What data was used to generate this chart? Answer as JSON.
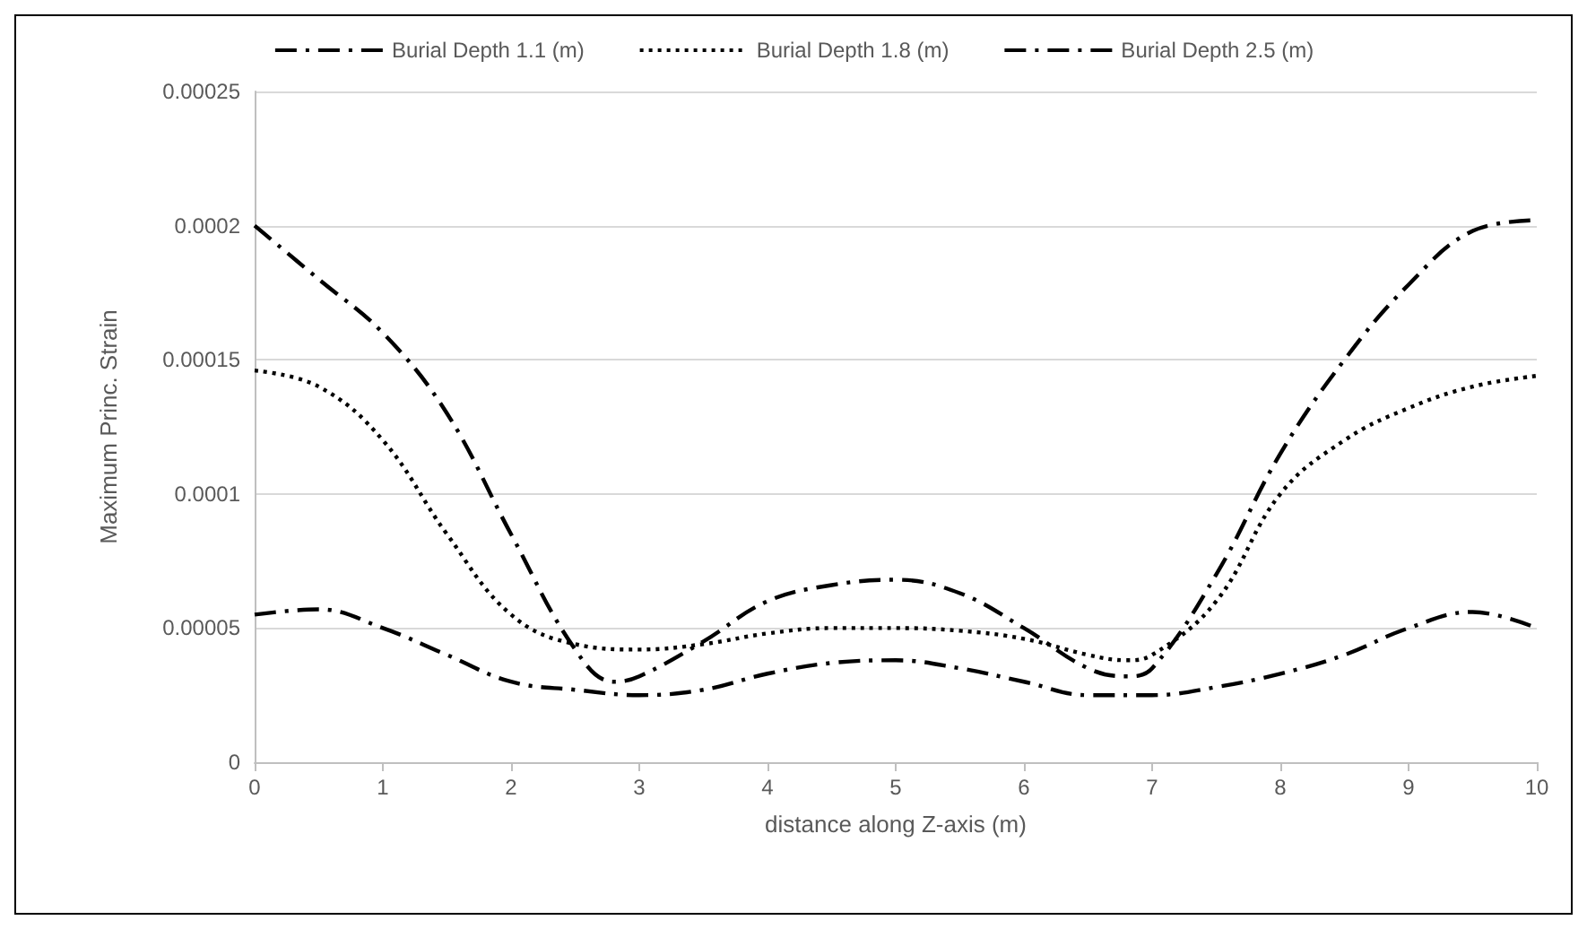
{
  "chart_data": {
    "type": "line",
    "xlabel": "distance along Z-axis (m)",
    "ylabel": "Maximum Princ. Strain",
    "xlim": [
      0,
      10
    ],
    "xticks": [
      0,
      1,
      2,
      3,
      4,
      5,
      6,
      7,
      8,
      9,
      10
    ],
    "ylim": [
      0,
      0.00025
    ],
    "yticks": [
      0,
      {
        "value": 5e-05,
        "label": "0.00005"
      },
      0.0001,
      0.00015,
      0.0002,
      0.00025
    ],
    "grid": "y",
    "legend": "top",
    "marker": "none",
    "series": [
      {
        "name": "Burial Depth 1.1 (m)",
        "color": "#000000",
        "line_style": "dashed",
        "x": [
          0,
          0.5,
          1,
          1.5,
          2,
          2.5,
          3,
          3.5,
          4,
          4.5,
          5,
          5.5,
          6,
          6.5,
          7,
          7.5,
          8,
          8.5,
          9,
          9.5,
          10
        ],
        "values": [
          5.5e-05,
          5.7e-05,
          5e-05,
          4e-05,
          3e-05,
          2.7e-05,
          2.5e-05,
          2.7e-05,
          3.3e-05,
          3.7e-05,
          3.8e-05,
          3.5e-05,
          3e-05,
          2.5e-05,
          2.5e-05,
          2.8e-05,
          3.3e-05,
          4e-05,
          5e-05,
          5.6e-05,
          5e-05
        ]
      },
      {
        "name": "Burial Depth 1.8 (m)",
        "color": "#000000",
        "line_style": "dotted",
        "x": [
          0,
          0.5,
          1,
          1.5,
          2,
          2.5,
          3,
          3.5,
          4,
          4.5,
          5,
          5.5,
          6,
          6.5,
          6.8,
          7,
          7.5,
          8,
          8.5,
          9,
          9.5,
          10
        ],
        "values": [
          0.000146,
          0.00014,
          0.00012,
          8.5e-05,
          5.5e-05,
          4.4e-05,
          4.2e-05,
          4.4e-05,
          4.8e-05,
          5e-05,
          5e-05,
          4.9e-05,
          4.6e-05,
          4e-05,
          3.8e-05,
          4e-05,
          6e-05,
          0.0001,
          0.00012,
          0.000132,
          0.00014,
          0.000144
        ]
      },
      {
        "name": "Burial Depth 2.5 (m)",
        "color": "#000000",
        "line_style": "dashed",
        "x": [
          0,
          0.5,
          1,
          1.5,
          2,
          2.5,
          2.8,
          3,
          3.5,
          4,
          4.5,
          5,
          5.5,
          6,
          6.5,
          6.8,
          7,
          7.5,
          8,
          8.5,
          9,
          9.5,
          10
        ],
        "values": [
          0.0002,
          0.00018,
          0.00016,
          0.00013,
          8.5e-05,
          4.2e-05,
          3e-05,
          3.2e-05,
          4.5e-05,
          6e-05,
          6.6e-05,
          6.8e-05,
          6.3e-05,
          5e-05,
          3.5e-05,
          3.2e-05,
          3.5e-05,
          7e-05,
          0.000115,
          0.00015,
          0.000178,
          0.000198,
          0.000202
        ]
      }
    ]
  }
}
